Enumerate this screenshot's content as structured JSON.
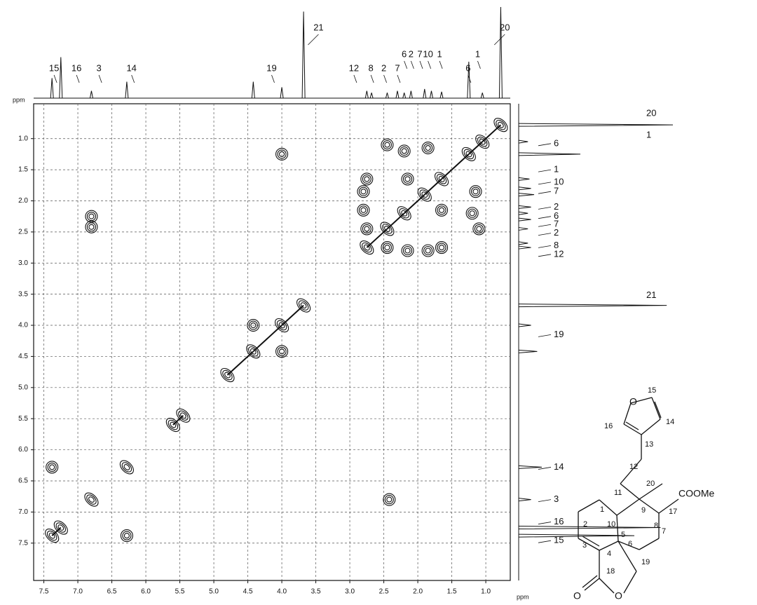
{
  "chart_data": {
    "type": "contour",
    "x_unit": "ppm",
    "y_unit": "ppm",
    "xlim": [
      7.65,
      0.64
    ],
    "ylim": [
      0.44,
      8.1
    ],
    "xticks": [
      7.5,
      {
        "value": 7,
        "label": "7.0"
      },
      6.5,
      {
        "value": 6,
        "label": "6.0"
      },
      5.5,
      {
        "value": 5,
        "label": "5.0"
      },
      4.5,
      {
        "value": 4,
        "label": "4.0"
      },
      3.5,
      {
        "value": 3,
        "label": "3.0"
      },
      2.5,
      {
        "value": 2,
        "label": "2.0"
      },
      1.5,
      {
        "value": 1,
        "label": "1.0"
      }
    ],
    "yticks": [
      {
        "value": 1,
        "label": "1.0"
      },
      1.5,
      {
        "value": 2,
        "label": "2.0"
      },
      2.5,
      {
        "value": 3,
        "label": "3.0"
      },
      3.5,
      {
        "value": 4,
        "label": "4.0"
      },
      4.5,
      {
        "value": 5,
        "label": "5.0"
      },
      5.5,
      {
        "value": 6,
        "label": "6.0"
      },
      6.5,
      {
        "value": 7,
        "label": "7.0"
      },
      7.5
    ],
    "grid": true,
    "color": "#111111",
    "cross_peaks": {
      "x": [
        7.38,
        7.25,
        6.8,
        6.28,
        5.6,
        5.45,
        4.8,
        4.42,
        4.0,
        3.68,
        2.75,
        2.45,
        2.2,
        1.9,
        1.65,
        1.25,
        1.05,
        0.78,
        6.8,
        2.42,
        7.38,
        6.28,
        4.42,
        4.0,
        2.45,
        1.1,
        2.2,
        1.2,
        2.8,
        1.85,
        2.8,
        2.15,
        2.45,
        2.75,
        1.65,
        2.75,
        1.65,
        2.15,
        1.15,
        1.85,
        4.0,
        6.8
      ],
      "y": [
        7.38,
        7.25,
        6.8,
        6.28,
        5.6,
        5.45,
        4.8,
        4.42,
        4.0,
        3.68,
        2.75,
        2.45,
        2.2,
        1.9,
        1.65,
        1.25,
        1.05,
        0.78,
        2.42,
        6.8,
        6.28,
        7.38,
        4.0,
        4.42,
        1.1,
        2.45,
        1.2,
        2.2,
        1.85,
        2.8,
        2.15,
        2.8,
        2.75,
        2.45,
        2.75,
        1.65,
        2.15,
        1.65,
        1.85,
        1.15,
        1.25,
        2.25
      ]
    },
    "top_spectrum": {
      "x": [
        7.38,
        7.25,
        6.8,
        6.28,
        4.42,
        4.0,
        3.68,
        2.75,
        2.68,
        2.45,
        2.3,
        2.2,
        2.1,
        1.9,
        1.8,
        1.65,
        1.25,
        1.05,
        0.78
      ],
      "values": [
        22,
        45,
        8,
        18,
        18,
        12,
        95,
        8,
        6,
        6,
        8,
        6,
        8,
        10,
        8,
        7,
        40,
        6,
        100
      ]
    },
    "side_spectrum": {
      "y": [
        7.38,
        7.25,
        6.8,
        6.28,
        4.42,
        4.0,
        3.68,
        2.75,
        2.68,
        2.45,
        2.3,
        2.2,
        2.1,
        1.9,
        1.8,
        1.65,
        1.25,
        1.05,
        0.78
      ],
      "values": [
        75,
        92,
        8,
        15,
        12,
        8,
        96,
        8,
        6,
        6,
        8,
        6,
        8,
        10,
        8,
        7,
        40,
        6,
        100
      ]
    },
    "top_labels": [
      {
        "text": "15",
        "x": 7.35
      },
      {
        "text": "16",
        "x": 7.02
      },
      {
        "text": "3",
        "x": 6.69
      },
      {
        "text": "14",
        "x": 6.21
      },
      {
        "text": "19",
        "x": 4.15
      },
      {
        "text": "21",
        "x": 3.46
      },
      {
        "text": "12",
        "x": 2.94
      },
      {
        "text": "8",
        "x": 2.69
      },
      {
        "text": "2",
        "x": 2.5
      },
      {
        "text": "7",
        "x": 2.3
      },
      {
        "text": "6",
        "x": 2.2
      },
      {
        "text": "2",
        "x": 2.1
      },
      {
        "text": "7",
        "x": 1.97
      },
      {
        "text": "10",
        "x": 1.85
      },
      {
        "text": "1",
        "x": 1.68
      },
      {
        "text": "6",
        "x": 1.26
      },
      {
        "text": "1",
        "x": 1.12
      },
      {
        "text": "20",
        "x": 0.72
      }
    ],
    "side_labels": [
      {
        "text": "20",
        "y": 0.6
      },
      {
        "text": "1",
        "y": 0.95
      },
      {
        "text": "6",
        "y": 1.08
      },
      {
        "text": "1",
        "y": 1.5
      },
      {
        "text": "10",
        "y": 1.7
      },
      {
        "text": "7",
        "y": 1.85
      },
      {
        "text": "2",
        "y": 2.1
      },
      {
        "text": "6",
        "y": 2.25
      },
      {
        "text": "7",
        "y": 2.38
      },
      {
        "text": "2",
        "y": 2.52
      },
      {
        "text": "8",
        "y": 2.72
      },
      {
        "text": "12",
        "y": 2.86
      },
      {
        "text": "21",
        "y": 3.52
      },
      {
        "text": "19",
        "y": 4.15
      },
      {
        "text": "14",
        "y": 6.28
      },
      {
        "text": "3",
        "y": 6.8
      },
      {
        "text": "16",
        "y": 7.16
      },
      {
        "text": "15",
        "y": 7.46
      }
    ]
  },
  "structure": {
    "labels": [
      "O",
      "15",
      "14",
      "16",
      "13",
      "12",
      "11",
      "20",
      "9",
      "COOMe",
      "17",
      "8",
      "7",
      "6",
      "5",
      "10",
      "1",
      "2",
      "3",
      "4",
      "18",
      "O",
      "O",
      "19"
    ]
  }
}
